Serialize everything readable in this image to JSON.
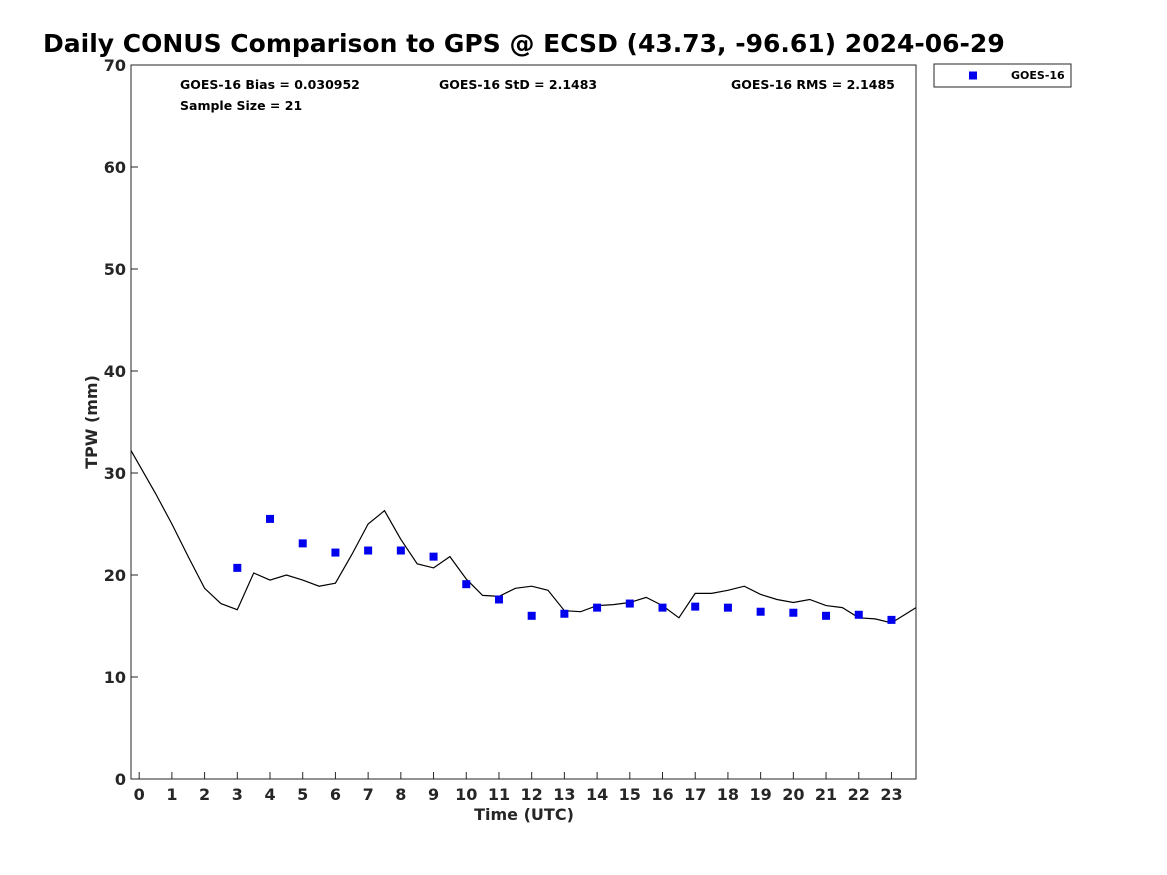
{
  "chart_data": {
    "type": "scatter",
    "title": "Daily CONUS Comparison to GPS @ ECSD (43.73, -96.61) 2024-06-29",
    "xlabel": "Time (UTC)",
    "ylabel": "TPW (mm)",
    "xlim": [
      -0.25,
      23.75
    ],
    "ylim": [
      0,
      70
    ],
    "xticks": [
      0,
      1,
      2,
      3,
      4,
      5,
      6,
      7,
      8,
      9,
      10,
      11,
      12,
      13,
      14,
      15,
      16,
      17,
      18,
      19,
      20,
      21,
      22,
      23
    ],
    "yticks": [
      0,
      10,
      20,
      30,
      40,
      50,
      60,
      70
    ],
    "grid": false,
    "legend_position": "top-right-outside",
    "stats": {
      "bias": "GOES-16 Bias = 0.030952",
      "std": "GOES-16 StD = 2.1483",
      "rms": "GOES-16 RMS = 2.1485",
      "sample_size": "Sample Size = 21"
    },
    "series": [
      {
        "name": "GOES-16",
        "kind": "scatter",
        "color": "#0000ee",
        "marker": "square",
        "x": [
          3,
          4,
          5,
          6,
          7,
          8,
          9,
          10,
          11,
          12,
          13,
          14,
          15,
          16,
          17,
          18,
          19,
          20,
          21,
          22,
          23
        ],
        "y": [
          20.7,
          25.5,
          23.1,
          22.2,
          22.4,
          22.4,
          21.8,
          19.1,
          17.6,
          16.0,
          16.2,
          16.8,
          17.2,
          16.8,
          16.9,
          16.8,
          16.4,
          16.3,
          16.0,
          16.1,
          15.6
        ]
      },
      {
        "kind": "line",
        "color": "#000000",
        "x": [
          -0.25,
          0.5,
          1.0,
          1.5,
          2.0,
          2.5,
          3.0,
          3.5,
          4.0,
          4.5,
          5.0,
          5.5,
          6.0,
          6.5,
          7.0,
          7.5,
          8.0,
          8.5,
          9.0,
          9.5,
          10.0,
          10.5,
          11.0,
          11.5,
          12.0,
          12.5,
          13.0,
          13.5,
          14.0,
          14.5,
          15.0,
          15.5,
          16.0,
          16.5,
          17.0,
          17.5,
          18.0,
          18.5,
          19.0,
          19.5,
          20.0,
          20.5,
          21.0,
          21.5,
          22.0,
          22.5,
          23.0,
          23.5,
          23.75
        ],
        "y": [
          32.2,
          28.0,
          25.0,
          21.8,
          18.7,
          17.2,
          16.6,
          20.2,
          19.5,
          20.0,
          19.5,
          18.9,
          19.2,
          22.0,
          25.0,
          26.3,
          23.5,
          21.1,
          20.7,
          21.8,
          19.6,
          18.0,
          17.9,
          18.7,
          18.9,
          18.5,
          16.5,
          16.4,
          17.0,
          17.1,
          17.3,
          17.8,
          17.0,
          15.8,
          18.2,
          18.2,
          18.5,
          18.9,
          18.1,
          17.6,
          17.3,
          17.6,
          17.0,
          16.8,
          15.8,
          15.7,
          15.3,
          16.3,
          16.8
        ]
      }
    ]
  }
}
